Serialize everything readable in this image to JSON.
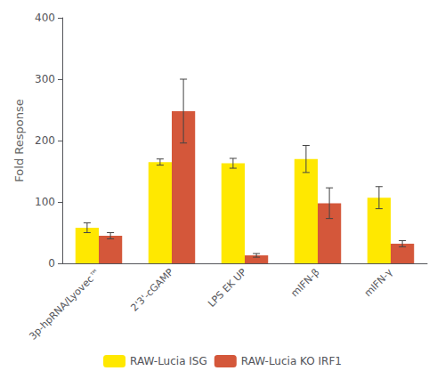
{
  "chart_data": {
    "type": "bar",
    "ylabel": "Fold Response",
    "categories": [
      "3p-hpRNA/Lyovec™",
      "2'3'-cGAMP",
      "LPS EK UP",
      "mIFN-β",
      "mIFN-γ"
    ],
    "series": [
      {
        "name": "RAW-Lucia ISG",
        "color": "#FFE800",
        "values": [
          58,
          165,
          163,
          170,
          107
        ],
        "errors": [
          8,
          5,
          8,
          22,
          18
        ]
      },
      {
        "name": "RAW-Lucia KO IRF1",
        "color": "#D4573A",
        "values": [
          45,
          248,
          13,
          98,
          32
        ],
        "errors": [
          5,
          52,
          3,
          25,
          5
        ]
      }
    ],
    "ylim": [
      0,
      400
    ],
    "yticks": [
      0,
      100,
      200,
      300,
      400
    ],
    "grid": false,
    "legend": "bottom"
  }
}
